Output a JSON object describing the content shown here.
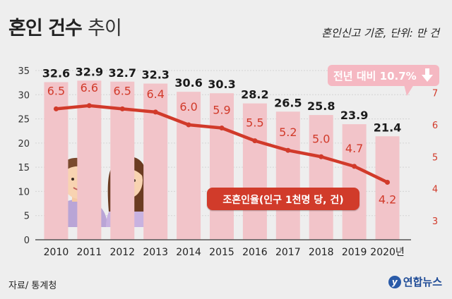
{
  "header": {
    "title_bold": "혼인 건수",
    "title_light": "추이",
    "subtitle": "혼인신고 기준, 단위: 만 건"
  },
  "footer": {
    "source": "자료/ 통계청",
    "logo_text": "연합뉴스",
    "logo_mark": "y"
  },
  "callouts": {
    "change": "전년 대비 10.7%",
    "change_icon": "down-arrow-icon",
    "line_label": "조혼인율(인구 1천명 당, 건)"
  },
  "colors": {
    "bar": "#f2c4c9",
    "line": "#d13a2a",
    "line_value_text": "#d13a2a",
    "bar_value_text": "#1a1a1a",
    "callout_bg": "#f5b8c2",
    "line_label_bg": "#d13a2a"
  },
  "chart_data": {
    "type": "bar",
    "categories": [
      "2010",
      "2011",
      "2012",
      "2013",
      "2014",
      "2015",
      "2016",
      "2017",
      "2018",
      "2019",
      "2020년"
    ],
    "series": [
      {
        "values": [
          32.6,
          32.9,
          32.7,
          32.3,
          30.6,
          30.3,
          28.2,
          26.5,
          25.8,
          23.9,
          21.4
        ]
      },
      {
        "name": "조혼인율(인구 1천명 당, 건)",
        "type": "line",
        "axis": "right",
        "values": [
          6.5,
          6.6,
          6.5,
          6.4,
          6.0,
          5.9,
          5.5,
          5.2,
          5.0,
          4.7,
          4.2
        ]
      }
    ],
    "left_axis": {
      "min": 0,
      "max": 35,
      "ticks": [
        0,
        5,
        10,
        15,
        20,
        25,
        30,
        35
      ]
    },
    "right_axis": {
      "min": 2.4,
      "max": 7.7,
      "ticks": [
        3,
        4,
        5,
        6,
        7
      ]
    },
    "grid": true,
    "legend": "none"
  }
}
